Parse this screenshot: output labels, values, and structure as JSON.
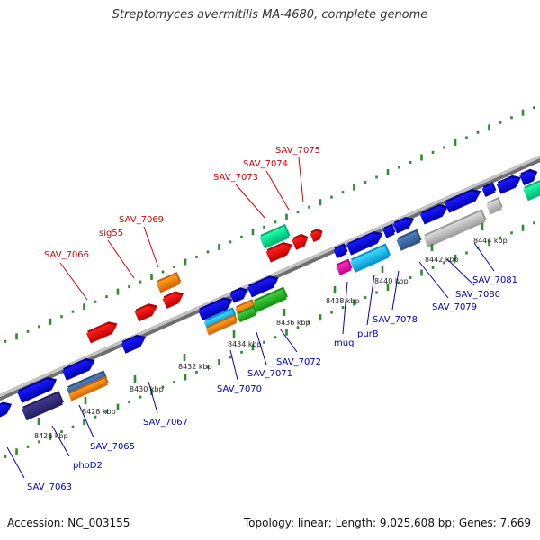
{
  "title": "Streptomyces avermitilis MA-4680, complete genome",
  "footer": {
    "accession": "Accession: NC_003155",
    "summary": "Topology: linear; Length: 9,025,608 bp; Genes: 7,669"
  },
  "colors": {
    "backbone": "#9a9a9a",
    "dots": "#2e8b2e",
    "upper_labels": "#dd0000",
    "lower_labels": "#0000bb",
    "tick_labels": "#222222"
  },
  "ticks": [
    "8426 kbp",
    "8428 kbp",
    "8430 kbp",
    "8432 kbp",
    "8434 kbp",
    "8436 kbp",
    "8438 kbp",
    "8440 kbp",
    "8442 kbp",
    "8444 kbp"
  ],
  "upper_labels": [
    "SAV_7066",
    "sig55",
    "SAV_7069",
    "SAV_7073",
    "SAV_7074",
    "SAV_7075"
  ],
  "lower_labels": [
    "SAV_7063",
    "phoD2",
    "SAV_7065",
    "SAV_7067",
    "SAV_7070",
    "SAV_7071",
    "SAV_7072",
    "mug",
    "purB",
    "SAV_7078",
    "SAV_7079",
    "SAV_7080",
    "SAV_7081"
  ],
  "feature_colors": [
    "blue",
    "red",
    "orange",
    "spring-green",
    "cyan",
    "steel-blue",
    "magenta",
    "lime-green",
    "dark-slate-blue",
    "silver"
  ]
}
